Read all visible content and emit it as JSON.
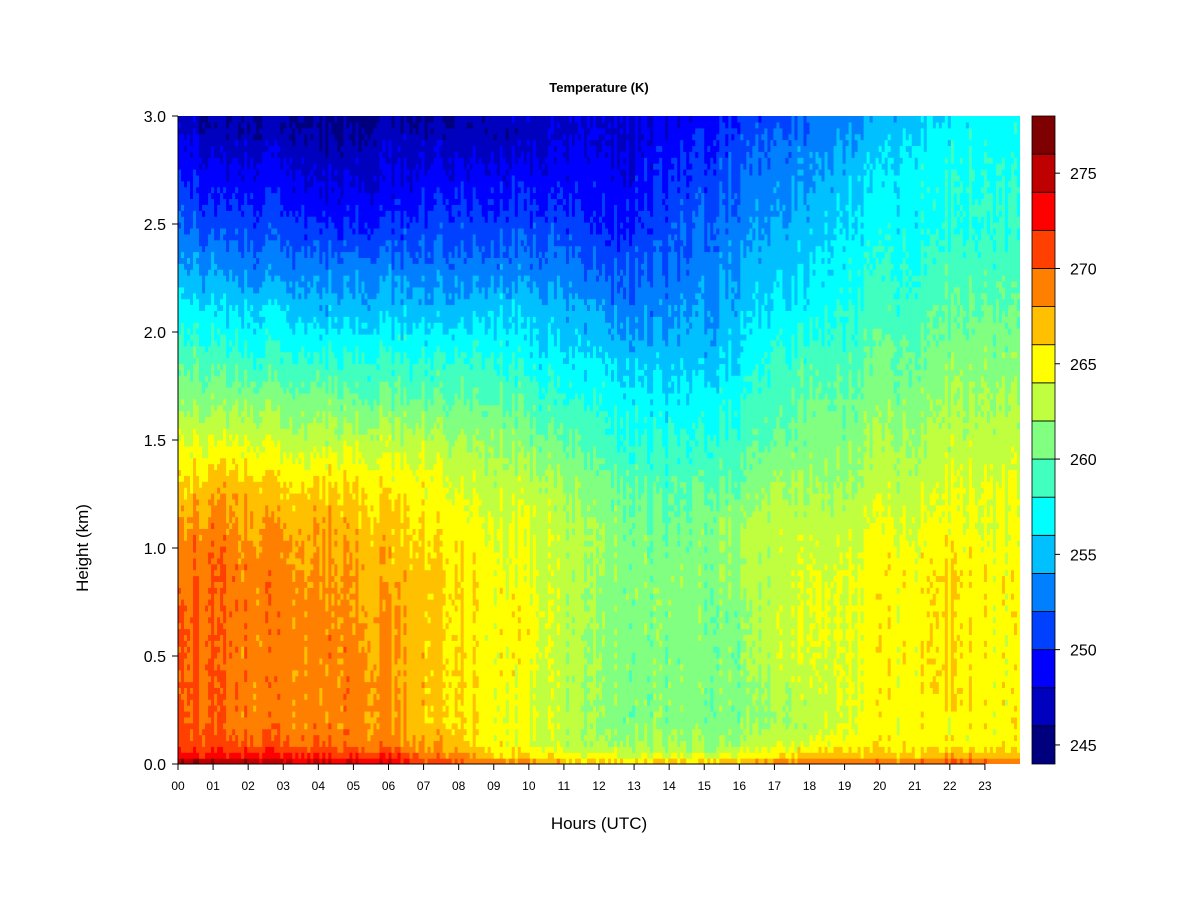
{
  "chart_data": {
    "type": "heatmap",
    "title": "Temperature (K)",
    "xlabel": "Hours (UTC)",
    "ylabel": "Height (km)",
    "x_tick_labels": [
      "00",
      "01",
      "02",
      "03",
      "04",
      "05",
      "06",
      "07",
      "08",
      "09",
      "10",
      "11",
      "12",
      "13",
      "14",
      "15",
      "16",
      "17",
      "18",
      "19",
      "20",
      "21",
      "22",
      "23"
    ],
    "y_tick_labels": [
      "0.0",
      "0.5",
      "1.0",
      "1.5",
      "2.0",
      "2.5",
      "3.0"
    ],
    "xlim": [
      0,
      24
    ],
    "ylim": [
      0,
      3.0
    ],
    "colorbar": {
      "range": [
        244,
        278
      ],
      "step": 2,
      "tick_labels": [
        "245",
        "250",
        "255",
        "260",
        "265",
        "270",
        "275"
      ],
      "tick_values": [
        245,
        250,
        255,
        260,
        265,
        270,
        275
      ],
      "colors": [
        "#00007f",
        "#0000bf",
        "#0000ff",
        "#0040ff",
        "#0080ff",
        "#00c0ff",
        "#00ffff",
        "#40ffbf",
        "#80ff80",
        "#bfff40",
        "#ffff00",
        "#ffc000",
        "#ff8000",
        "#ff4000",
        "#ff0000",
        "#bf0000",
        "#7f0000"
      ]
    },
    "x_hours": [
      0,
      1,
      2,
      3,
      4,
      5,
      6,
      7,
      8,
      9,
      10,
      11,
      12,
      13,
      14,
      15,
      16,
      17,
      18,
      19,
      20,
      21,
      22,
      23
    ],
    "heights_km": [
      0.0,
      0.05,
      0.1,
      0.2,
      0.3,
      0.5,
      0.7,
      0.9,
      1.1,
      1.3,
      1.5,
      1.7,
      1.9,
      2.1,
      2.3,
      2.5,
      2.7,
      2.9,
      3.0
    ],
    "temperature_K": [
      [
        277,
        272,
        271,
        270,
        270,
        270,
        270,
        269,
        268,
        266,
        264,
        261,
        259,
        257,
        254,
        252,
        250,
        248,
        247
      ],
      [
        277,
        272,
        271,
        270,
        270,
        270,
        270,
        270,
        269,
        267,
        264,
        261,
        259,
        256,
        254,
        251,
        249,
        247,
        246
      ],
      [
        276,
        272,
        270,
        269,
        269,
        269,
        269,
        269,
        268,
        267,
        264,
        261,
        258,
        256,
        253,
        251,
        249,
        247,
        246
      ],
      [
        275,
        272,
        270,
        269,
        269,
        269,
        269,
        269,
        268,
        266,
        263,
        261,
        258,
        256,
        253,
        251,
        249,
        247,
        246
      ],
      [
        275,
        271,
        270,
        269,
        269,
        269,
        269,
        268,
        268,
        266,
        263,
        261,
        258,
        255,
        253,
        250,
        248,
        246,
        246
      ],
      [
        275,
        271,
        269,
        269,
        269,
        269,
        268,
        268,
        267,
        266,
        263,
        260,
        258,
        255,
        253,
        250,
        248,
        246,
        245
      ],
      [
        274,
        271,
        269,
        268,
        268,
        268,
        268,
        267,
        267,
        265,
        263,
        260,
        258,
        255,
        253,
        250,
        248,
        247,
        246
      ],
      [
        272,
        269,
        268,
        267,
        267,
        267,
        267,
        267,
        266,
        265,
        263,
        260,
        258,
        255,
        253,
        251,
        249,
        247,
        246
      ],
      [
        271,
        268,
        267,
        266,
        266,
        266,
        266,
        266,
        265,
        264,
        262,
        260,
        258,
        255,
        253,
        251,
        249,
        247,
        246
      ],
      [
        270,
        266,
        265,
        265,
        265,
        265,
        265,
        265,
        264,
        263,
        262,
        260,
        258,
        256,
        253,
        251,
        249,
        247,
        247
      ],
      [
        269,
        265,
        264,
        264,
        264,
        265,
        265,
        264,
        264,
        263,
        261,
        259,
        257,
        255,
        253,
        251,
        249,
        247,
        247
      ],
      [
        268,
        264,
        263,
        263,
        263,
        263,
        263,
        263,
        263,
        262,
        260,
        258,
        256,
        255,
        253,
        251,
        249,
        248,
        247
      ],
      [
        267,
        264,
        262,
        262,
        262,
        262,
        262,
        262,
        262,
        261,
        259,
        258,
        256,
        254,
        252,
        250,
        249,
        248,
        248
      ],
      [
        267,
        263,
        262,
        261,
        261,
        261,
        261,
        261,
        261,
        260,
        258,
        257,
        255,
        253,
        252,
        250,
        249,
        248,
        248
      ],
      [
        267,
        263,
        262,
        261,
        261,
        261,
        261,
        261,
        260,
        259,
        258,
        256,
        255,
        253,
        252,
        251,
        250,
        249,
        248
      ],
      [
        267,
        263,
        262,
        261,
        261,
        261,
        261,
        261,
        261,
        260,
        258,
        257,
        255,
        254,
        253,
        252,
        251,
        250,
        249
      ],
      [
        268,
        264,
        262,
        261,
        261,
        261,
        261,
        262,
        262,
        260,
        259,
        258,
        256,
        255,
        254,
        253,
        252,
        251,
        250
      ],
      [
        269,
        265,
        263,
        262,
        262,
        263,
        263,
        263,
        263,
        262,
        260,
        259,
        258,
        256,
        255,
        254,
        253,
        252,
        251
      ],
      [
        270,
        266,
        264,
        263,
        263,
        264,
        264,
        264,
        263,
        262,
        261,
        260,
        259,
        257,
        256,
        255,
        254,
        253,
        252
      ],
      [
        271,
        266,
        265,
        264,
        264,
        264,
        264,
        264,
        263,
        262,
        261,
        260,
        259,
        258,
        257,
        256,
        255,
        254,
        253
      ],
      [
        270,
        266,
        265,
        265,
        265,
        265,
        265,
        265,
        264,
        263,
        262,
        261,
        260,
        259,
        258,
        257,
        256,
        255,
        254
      ],
      [
        270,
        266,
        265,
        265,
        265,
        265,
        265,
        265,
        264,
        263,
        262,
        261,
        260,
        259,
        258,
        257,
        257,
        256,
        255
      ],
      [
        271,
        267,
        265,
        265,
        266,
        266,
        266,
        266,
        265,
        264,
        263,
        262,
        261,
        260,
        259,
        258,
        258,
        257,
        256
      ],
      [
        270,
        266,
        265,
        265,
        265,
        265,
        265,
        265,
        264,
        264,
        263,
        262,
        261,
        260,
        259,
        258,
        258,
        257,
        257
      ]
    ]
  }
}
